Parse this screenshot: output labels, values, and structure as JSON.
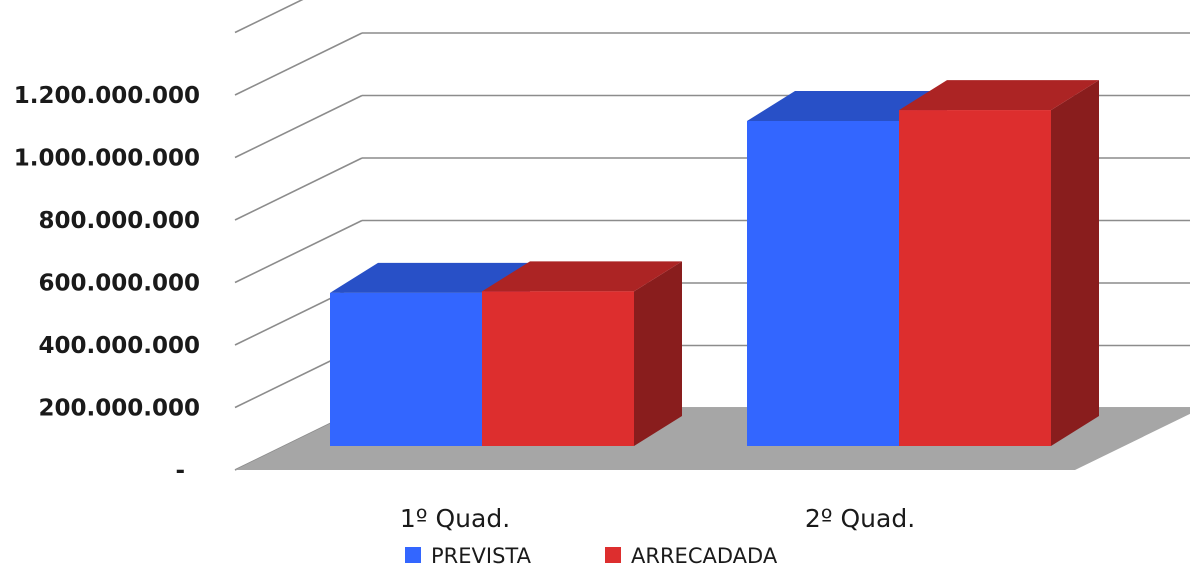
{
  "chart_data": {
    "type": "bar",
    "categories": [
      "1º Quad.",
      "2º Quad."
    ],
    "series": [
      {
        "name": "PREVISTA",
        "values": [
          490000000,
          1040000000
        ],
        "color": "#3366ff"
      },
      {
        "name": "ARRECADADA",
        "values": [
          495000000,
          1075000000
        ],
        "color": "#dd2e2e"
      }
    ],
    "yticks": [
      {
        "value": 0,
        "label": "-"
      },
      {
        "value": 200000000,
        "label": "200.000.000"
      },
      {
        "value": 400000000,
        "label": "400.000.000"
      },
      {
        "value": 600000000,
        "label": "600.000.000"
      },
      {
        "value": 800000000,
        "label": "800.000.000"
      },
      {
        "value": 1000000000,
        "label": "1.000.000.000"
      },
      {
        "value": 1200000000,
        "label": "1.200.000.000"
      }
    ],
    "ylim": [
      0,
      1400000000
    ],
    "title": "",
    "xlabel": "",
    "ylabel": "",
    "grid": true,
    "style": "3d-clustered-column",
    "legend_position": "bottom",
    "floor_color": "#a6a6a6",
    "grid_color": "#8c8c8c"
  }
}
